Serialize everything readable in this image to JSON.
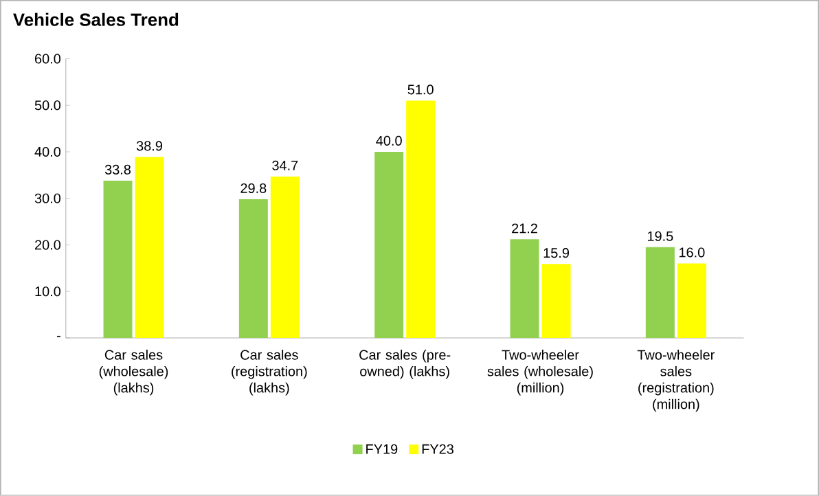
{
  "chart_data": {
    "type": "bar",
    "title": "Vehicle Sales Trend",
    "categories": [
      "Car sales (wholesale) (lakhs)",
      "Car sales (registration) (lakhs)",
      "Car sales (pre-owned) (lakhs)",
      "Two-wheeler sales (wholesale) (million)",
      "Two-wheeler sales (registration) (million)"
    ],
    "series": [
      {
        "name": "FY19",
        "color": "#92d050",
        "values": [
          33.8,
          29.8,
          40.0,
          21.2,
          19.5
        ],
        "value_labels": [
          "33.8",
          "29.8",
          "40.0",
          "21.2",
          "19.5"
        ]
      },
      {
        "name": "FY23",
        "color": "#ffff00",
        "values": [
          38.9,
          34.7,
          51.0,
          15.9,
          16.0
        ],
        "value_labels": [
          "38.9",
          "34.7",
          "51.0",
          "15.9",
          "16.0"
        ]
      }
    ],
    "ylim": [
      0,
      60
    ],
    "yticks": [
      {
        "value": 0,
        "label": "-"
      },
      {
        "value": 10,
        "label": "10.0"
      },
      {
        "value": 20,
        "label": "20.0"
      },
      {
        "value": 30,
        "label": "30.0"
      },
      {
        "value": 40,
        "label": "40.0"
      },
      {
        "value": 50,
        "label": "50.0"
      },
      {
        "value": 60,
        "label": "60.0"
      }
    ],
    "grid": false,
    "legend": "bottom"
  }
}
